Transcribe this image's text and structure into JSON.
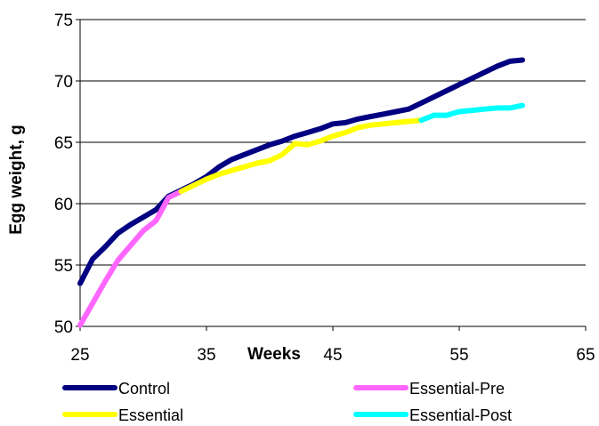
{
  "chart_data": {
    "type": "line",
    "title": "",
    "xlabel": "Weeks",
    "ylabel": "Egg weight, g",
    "xlim": [
      25,
      65
    ],
    "ylim": [
      50,
      75
    ],
    "x_ticks": [
      25,
      35,
      45,
      55,
      65
    ],
    "y_ticks": [
      50,
      55,
      60,
      65,
      70,
      75
    ],
    "grid": "horizontal",
    "legend_position": "bottom",
    "series": [
      {
        "name": "Control",
        "color": "#000080",
        "points": [
          [
            25,
            53.5
          ],
          [
            26,
            55.5
          ],
          [
            27,
            56.5
          ],
          [
            28,
            57.6
          ],
          [
            29,
            58.3
          ],
          [
            30,
            58.9
          ],
          [
            31,
            59.5
          ],
          [
            32,
            60.6
          ],
          [
            33,
            61.1
          ],
          [
            34,
            61.6
          ],
          [
            35,
            62.2
          ],
          [
            36,
            63
          ],
          [
            37,
            63.6
          ],
          [
            38,
            64
          ],
          [
            39,
            64.4
          ],
          [
            40,
            64.8
          ],
          [
            41,
            65.1
          ],
          [
            42,
            65.5
          ],
          [
            43,
            65.8
          ],
          [
            44,
            66.1
          ],
          [
            45,
            66.5
          ],
          [
            46,
            66.6
          ],
          [
            47,
            66.9
          ],
          [
            48,
            67.1
          ],
          [
            49,
            67.3
          ],
          [
            50,
            67.5
          ],
          [
            51,
            67.7
          ],
          [
            52,
            68.2
          ],
          [
            53,
            68.7
          ],
          [
            54,
            69.2
          ],
          [
            55,
            69.7
          ],
          [
            56,
            70.2
          ],
          [
            57,
            70.7
          ],
          [
            58,
            71.2
          ],
          [
            59,
            71.6
          ],
          [
            60,
            71.7
          ]
        ]
      },
      {
        "name": "Essential-Pre",
        "color": "#FF66FF",
        "points": [
          [
            25,
            50.1
          ],
          [
            26,
            51.9
          ],
          [
            27,
            53.7
          ],
          [
            28,
            55.4
          ],
          [
            29,
            56.6
          ],
          [
            30,
            57.8
          ],
          [
            31,
            58.6
          ],
          [
            32,
            60.5
          ],
          [
            33,
            61
          ]
        ]
      },
      {
        "name": "Essential",
        "color": "#FFFF00",
        "points": [
          [
            33,
            61
          ],
          [
            34,
            61.5
          ],
          [
            35,
            62
          ],
          [
            36,
            62.4
          ],
          [
            37,
            62.7
          ],
          [
            38,
            63
          ],
          [
            39,
            63.3
          ],
          [
            40,
            63.5
          ],
          [
            41,
            64
          ],
          [
            42,
            64.9
          ],
          [
            43,
            64.8
          ],
          [
            44,
            65.1
          ],
          [
            45,
            65.5
          ],
          [
            46,
            65.8
          ],
          [
            47,
            66.2
          ],
          [
            48,
            66.4
          ],
          [
            49,
            66.5
          ],
          [
            50,
            66.6
          ],
          [
            51,
            66.7
          ],
          [
            52,
            66.8
          ]
        ]
      },
      {
        "name": "Essential-Post",
        "color": "#00FFFF",
        "points": [
          [
            52,
            66.8
          ],
          [
            53,
            67.2
          ],
          [
            54,
            67.2
          ],
          [
            55,
            67.5
          ],
          [
            56,
            67.6
          ],
          [
            57,
            67.7
          ],
          [
            58,
            67.8
          ],
          [
            59,
            67.8
          ],
          [
            60,
            68
          ]
        ]
      }
    ]
  }
}
